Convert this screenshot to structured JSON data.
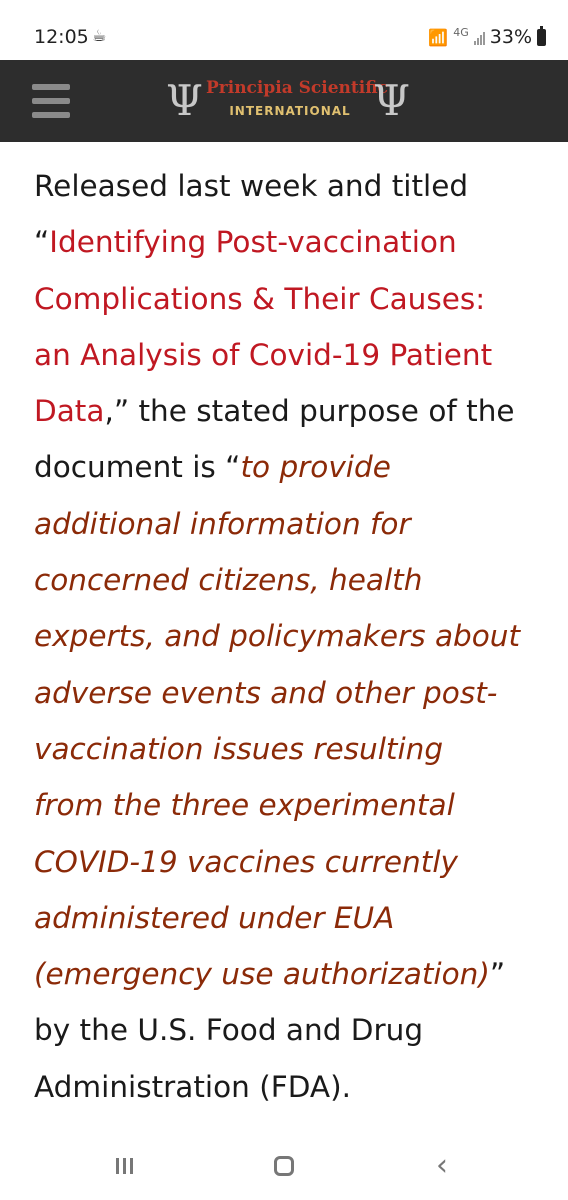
{
  "status_bar": {
    "time": "12:05",
    "network": "4G",
    "battery": "33%"
  },
  "header": {
    "logo_title": "Principia Scientific",
    "logo_subtitle": "INTERNATIONAL",
    "logo_symbol": "Ψ"
  },
  "article": {
    "lines": [
      {
        "parts": [
          {
            "text": "Released last week and titled",
            "style": "plain"
          }
        ]
      },
      {
        "parts": [
          {
            "text": "“",
            "style": "plain"
          },
          {
            "text": "Identifying Post-vaccination",
            "style": "link"
          }
        ]
      },
      {
        "parts": [
          {
            "text": "Complications & Their Causes:",
            "style": "link"
          }
        ]
      },
      {
        "parts": [
          {
            "text": "an Analysis of Covid-19 Patient",
            "style": "link"
          }
        ]
      },
      {
        "parts": [
          {
            "text": "Data",
            "style": "link"
          },
          {
            "text": ",” the stated purpose of the",
            "style": "plain"
          }
        ]
      },
      {
        "parts": [
          {
            "text": "document is “",
            "style": "plain"
          },
          {
            "text": "to provide",
            "style": "quote"
          }
        ]
      },
      {
        "parts": [
          {
            "text": "additional information for",
            "style": "quote"
          }
        ]
      },
      {
        "parts": [
          {
            "text": "concerned citizens, health",
            "style": "quote"
          }
        ]
      },
      {
        "parts": [
          {
            "text": "experts, and policymakers about",
            "style": "quote"
          }
        ]
      },
      {
        "parts": [
          {
            "text": "adverse events and other post-",
            "style": "quote"
          }
        ]
      },
      {
        "parts": [
          {
            "text": "vaccination issues resulting",
            "style": "quote"
          }
        ]
      },
      {
        "parts": [
          {
            "text": "from the three experimental",
            "style": "quote"
          }
        ]
      },
      {
        "parts": [
          {
            "text": "COVID-19 vaccines currently",
            "style": "quote"
          }
        ]
      },
      {
        "parts": [
          {
            "text": "administered under EUA",
            "style": "quote"
          }
        ]
      },
      {
        "parts": [
          {
            "text": "(emergency use authorization)",
            "style": "quote"
          },
          {
            "text": "”",
            "style": "plain"
          }
        ]
      },
      {
        "parts": [
          {
            "text": "by the U.S. Food and Drug",
            "style": "plain"
          }
        ]
      },
      {
        "parts": [
          {
            "text": "Administration (FDA).",
            "style": "plain"
          }
        ]
      }
    ]
  },
  "colors": {
    "header_bg": "#2d2d2d",
    "link_red": "#c01822",
    "quote_brown": "#8b2a08",
    "body_text": "#1a1a1a"
  },
  "nav_icons": [
    "recents-icon",
    "home-icon",
    "back-icon"
  ]
}
